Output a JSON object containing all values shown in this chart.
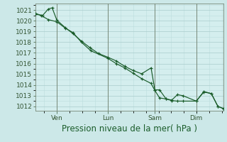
{
  "bg_color": "#cce8e8",
  "plot_bg_color": "#d4eeee",
  "grid_major_color": "#aacccc",
  "grid_minor_color": "#bbdddd",
  "line_color": "#1a5c2a",
  "marker_color": "#1a5c2a",
  "ylabel_ticks": [
    1012,
    1013,
    1014,
    1015,
    1016,
    1017,
    1018,
    1019,
    1020,
    1021
  ],
  "ylim": [
    1011.6,
    1021.6
  ],
  "xlabel": "Pression niveau de la mer( hPa )",
  "xlabel_fontsize": 8.5,
  "tick_fontsize": 6.5,
  "xtick_labels": [
    "Ven",
    "Lun",
    "Sam",
    "Dim"
  ],
  "xtick_positions": [
    0.115,
    0.385,
    0.635,
    0.855
  ],
  "line1_x": [
    0.0,
    0.04,
    0.07,
    0.09,
    0.115,
    0.16,
    0.2,
    0.245,
    0.29,
    0.335,
    0.385,
    0.43,
    0.475,
    0.52,
    0.565,
    0.615,
    0.635,
    0.66,
    0.695,
    0.725,
    0.755,
    0.785,
    0.855,
    0.895,
    0.935,
    0.97,
    1.0
  ],
  "line1_y": [
    1020.6,
    1020.5,
    1021.1,
    1021.2,
    1020.05,
    1019.35,
    1018.8,
    1018.1,
    1017.5,
    1016.95,
    1016.6,
    1016.25,
    1015.75,
    1015.35,
    1015.05,
    1015.6,
    1013.55,
    1013.55,
    1012.7,
    1012.6,
    1013.1,
    1013.0,
    1012.5,
    1013.4,
    1013.2,
    1012.0,
    1011.8
  ],
  "line2_x": [
    0.0,
    0.03,
    0.07,
    0.115,
    0.16,
    0.2,
    0.245,
    0.295,
    0.385,
    0.43,
    0.475,
    0.52,
    0.565,
    0.615,
    0.635,
    0.66,
    0.695,
    0.725,
    0.755,
    0.785,
    0.855,
    0.895,
    0.935,
    0.97,
    1.0
  ],
  "line2_y": [
    1020.7,
    1020.5,
    1020.1,
    1019.9,
    1019.3,
    1018.9,
    1018.0,
    1017.2,
    1016.5,
    1016.0,
    1015.6,
    1015.1,
    1014.6,
    1014.15,
    1013.5,
    1012.8,
    1012.7,
    1012.55,
    1012.5,
    1012.5,
    1012.5,
    1013.35,
    1013.2,
    1012.0,
    1011.8
  ]
}
